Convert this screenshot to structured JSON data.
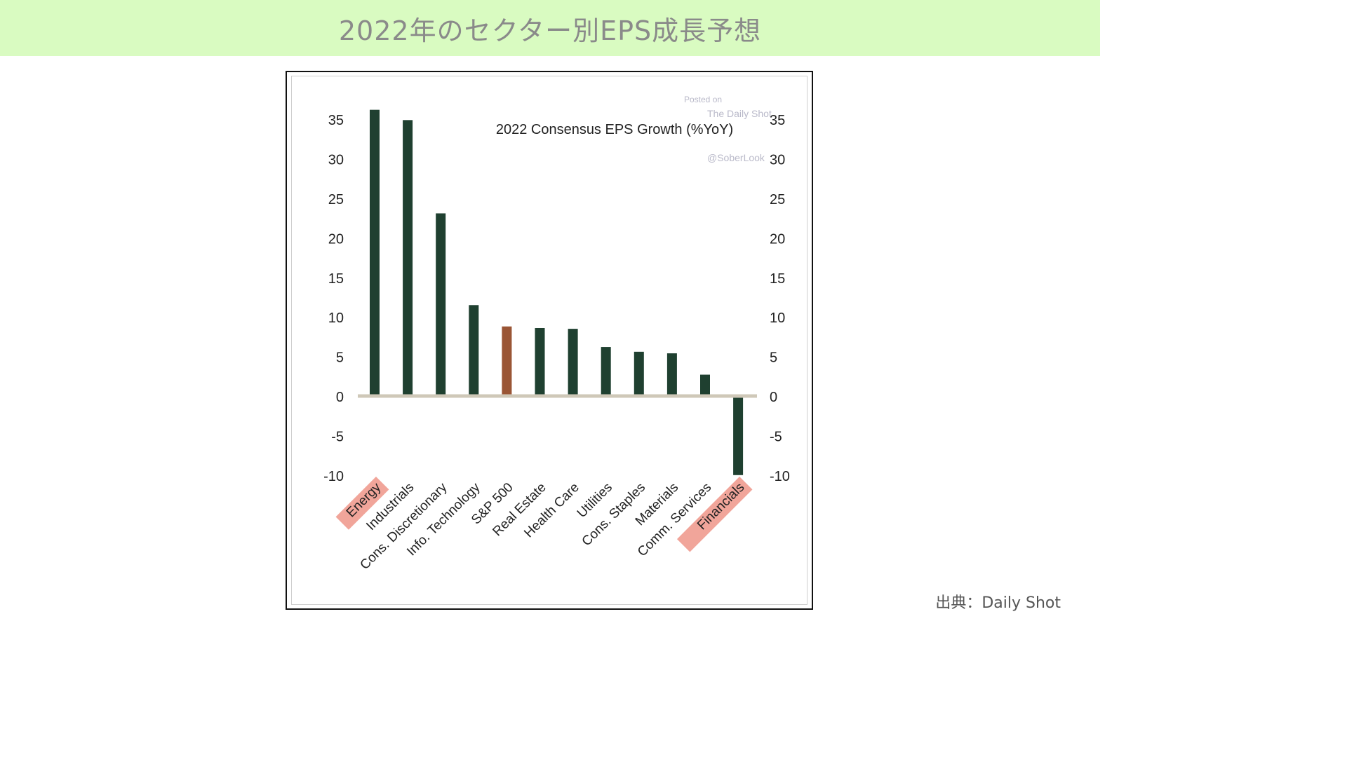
{
  "page": {
    "title": "2022年のセクター別EPS成長予想",
    "source": "出典：Daily Shot"
  },
  "colors": {
    "title_bg": "#d9fbc1",
    "bar": "#1f4030",
    "bar_highlight": "#9a5535",
    "zero_line": "#cfc8b8",
    "label_highlight": "#f1a59a"
  },
  "watermark": {
    "line1": "Posted on",
    "line2": "The Daily Shot",
    "line3": "@SoberLook"
  },
  "chart_data": {
    "type": "bar",
    "title": "2022 Consensus EPS Growth (%YoY)",
    "categories": [
      "Energy",
      "Industrials",
      "Cons. Discretionary",
      "Info. Technology",
      "S&P 500",
      "Real Estate",
      "Health Care",
      "Utilities",
      "Cons. Staples",
      "Materials",
      "Comm. Services",
      "Financials"
    ],
    "values": [
      36.2,
      34.9,
      23.1,
      11.5,
      8.8,
      8.6,
      8.5,
      6.2,
      5.6,
      5.4,
      2.7,
      -10.0
    ],
    "highlight_bar": "S&P 500",
    "highlighted_labels": [
      "Energy",
      "Financials"
    ],
    "ylim": [
      -10,
      35
    ],
    "yticks": [
      35,
      30,
      25,
      20,
      15,
      10,
      5,
      0,
      -5,
      -10
    ],
    "axes": "left and right",
    "grid": false,
    "legend": "none"
  }
}
